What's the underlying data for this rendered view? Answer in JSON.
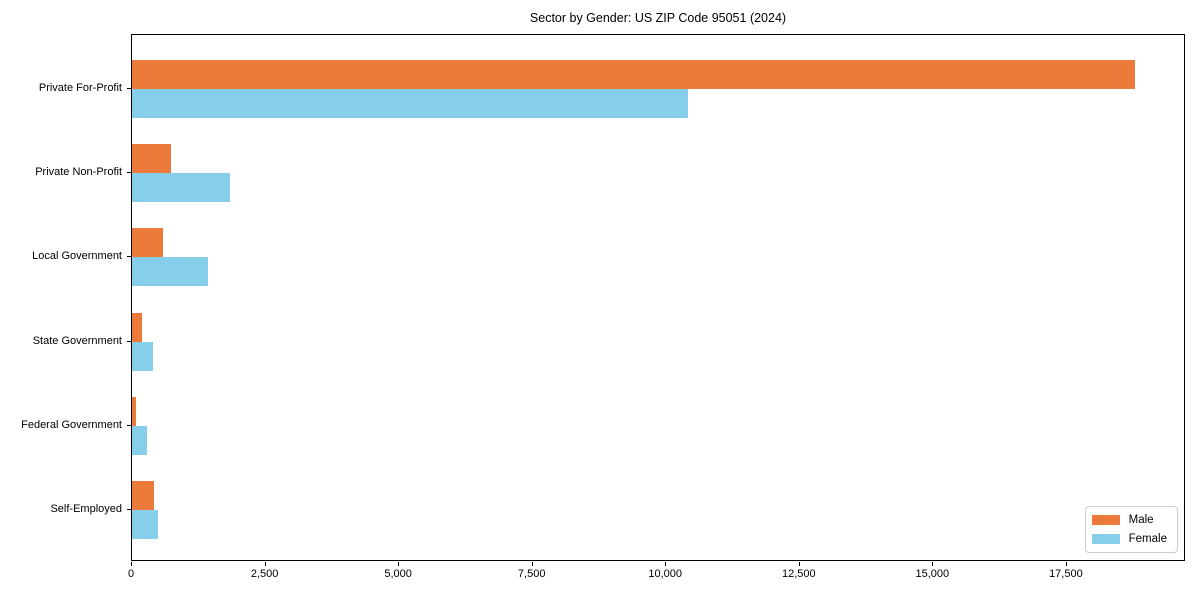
{
  "chart_data": {
    "type": "bar",
    "orientation": "horizontal",
    "title": "Sector by Gender: US ZIP Code 95051 (2024)",
    "xlabel": "",
    "ylabel": "",
    "categories": [
      "Private For-Profit",
      "Private Non-Profit",
      "Local Government",
      "State Government",
      "Federal Government",
      "Self-Employed"
    ],
    "series": [
      {
        "name": "Male",
        "color": "#EC7A3B",
        "values": [
          18780,
          720,
          580,
          180,
          70,
          410
        ]
      },
      {
        "name": "Female",
        "color": "#87CEEB",
        "values": [
          10400,
          1840,
          1430,
          390,
          275,
          490
        ]
      }
    ],
    "xlim": [
      0,
      19730
    ],
    "x_tick_values": [
      0,
      2500,
      5000,
      7500,
      10000,
      12500,
      15000,
      17500
    ],
    "x_tick_labels": [
      "0",
      "2,500",
      "5,000",
      "7,500",
      "10,000",
      "12,500",
      "15,000",
      "17,500"
    ],
    "grid": false,
    "legend_position": "lower right",
    "background_color": "#ffffff",
    "spine_color": "#000000"
  }
}
